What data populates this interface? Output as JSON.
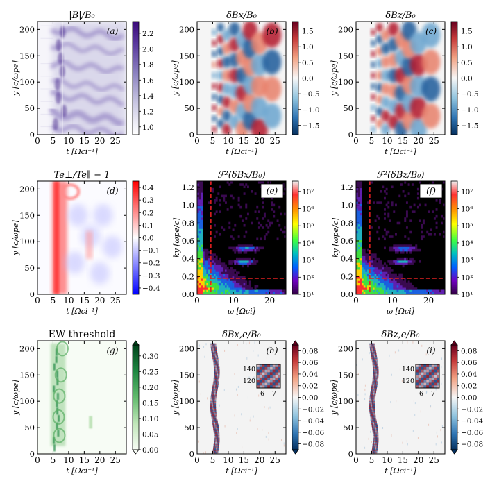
{
  "figure": {
    "panels": [
      {
        "id": "a",
        "title": "|B|/B₀",
        "label": "(a)",
        "type": "heatmap",
        "xlabel": "t [Ωci⁻¹]",
        "ylabel": "y [c/ωpe]",
        "x_ticks": [
          0,
          5,
          10,
          15,
          20,
          25
        ],
        "y_ticks": [
          0,
          50,
          100,
          150,
          200
        ],
        "xlim": [
          0,
          28.5
        ],
        "ylim": [
          0,
          215
        ],
        "colormap": "purples",
        "cbar_ticks": [
          "2.2",
          "2.0",
          "1.8",
          "1.6",
          "1.4",
          "1.2",
          "1.0"
        ],
        "cbar_range": [
          0.9,
          2.35
        ]
      },
      {
        "id": "b",
        "title": "δBx/B₀",
        "label": "(b)",
        "type": "heatmap",
        "xlabel": "t [Ωci⁻¹]",
        "ylabel": "y [c/ωpe]",
        "x_ticks": [
          0,
          5,
          10,
          15,
          20,
          25
        ],
        "y_ticks": [
          0,
          50,
          100,
          150,
          200
        ],
        "xlim": [
          0,
          28.5
        ],
        "ylim": [
          0,
          215
        ],
        "colormap": "rdbu",
        "cbar_ticks": [
          "1.5",
          "1.0",
          "0.5",
          "0.0",
          "−0.5",
          "−1.0",
          "−1.5"
        ],
        "cbar_range": [
          -1.8,
          1.8
        ]
      },
      {
        "id": "c",
        "title": "δBz/B₀",
        "label": "(c)",
        "type": "heatmap",
        "xlabel": "t [Ωci⁻¹]",
        "ylabel": "y [c/ωpe]",
        "x_ticks": [
          0,
          5,
          10,
          15,
          20,
          25
        ],
        "y_ticks": [
          0,
          50,
          100,
          150,
          200
        ],
        "xlim": [
          0,
          28.5
        ],
        "ylim": [
          0,
          215
        ],
        "colormap": "rdbu",
        "cbar_ticks": [
          "1.5",
          "1.0",
          "0.5",
          "0.0",
          "−0.5",
          "−1.0",
          "−1.5"
        ],
        "cbar_range": [
          -1.8,
          1.8
        ]
      },
      {
        "id": "d",
        "title": "Te⊥/Te∥ − 1",
        "label": "(d)",
        "type": "heatmap",
        "xlabel": "t [Ωci⁻¹]",
        "ylabel": "y [c/ωpe]",
        "x_ticks": [
          0,
          5,
          10,
          15,
          20,
          25
        ],
        "y_ticks": [
          0,
          50,
          100,
          150,
          200
        ],
        "xlim": [
          0,
          28.5
        ],
        "ylim": [
          0,
          215
        ],
        "colormap": "bwr",
        "cbar_ticks": [
          "0.4",
          "0.3",
          "0.2",
          "0.1",
          "0.0",
          "−0.1",
          "−0.2",
          "−0.3",
          "−0.4"
        ],
        "cbar_range": [
          -0.45,
          0.45
        ]
      },
      {
        "id": "e",
        "title": "ℱ²(δBx/B₀)",
        "label": "(e)",
        "type": "spectrum",
        "xlabel": "ω [Ωci]",
        "ylabel": "ky [ωpe/c]",
        "x_ticks": [
          0,
          10,
          20
        ],
        "y_ticks": [
          0.0,
          0.2,
          0.4,
          0.6,
          0.8,
          1.0,
          1.2
        ],
        "xlim": [
          0,
          24.5
        ],
        "ylim": [
          0,
          1.27
        ],
        "colormap": "spectral",
        "cbar_ticks": [
          "10⁷",
          "10⁶",
          "10⁵",
          "10⁴",
          "10³",
          "10²",
          "10¹"
        ],
        "cbar_range": [
          1,
          7.6
        ],
        "threshold_omega": 3.8,
        "threshold_ky": 0.18
      },
      {
        "id": "f",
        "title": "ℱ²(δBz/B₀)",
        "label": "(f)",
        "type": "spectrum",
        "xlabel": "ω [Ωci]",
        "ylabel": "ky [ωpe/c]",
        "x_ticks": [
          0,
          10,
          20
        ],
        "y_ticks": [
          0.0,
          0.2,
          0.4,
          0.6,
          0.8,
          1.0,
          1.2
        ],
        "xlim": [
          0,
          24.5
        ],
        "ylim": [
          0,
          1.27
        ],
        "colormap": "spectral",
        "cbar_ticks": [
          "10⁷",
          "10⁶",
          "10⁵",
          "10⁴",
          "10³",
          "10²",
          "10¹"
        ],
        "cbar_range": [
          1,
          7.6
        ],
        "threshold_omega": 3.8,
        "threshold_ky": 0.18
      },
      {
        "id": "g",
        "title": "EW threshold",
        "label": "(g)",
        "type": "heatmap",
        "xlabel": "t [Ωci⁻¹]",
        "ylabel": "y [c/ωpe]",
        "x_ticks": [
          0,
          5,
          10,
          15,
          20,
          25
        ],
        "y_ticks": [
          0,
          50,
          100,
          150,
          200
        ],
        "xlim": [
          0,
          28.5
        ],
        "ylim": [
          0,
          215
        ],
        "colormap": "greens",
        "cbar_ticks": [
          "0.30",
          "0.25",
          "0.20",
          "0.15",
          "0.10",
          "0.05",
          "0.00"
        ],
        "cbar_range": [
          0,
          0.335
        ]
      },
      {
        "id": "h",
        "title": "δBx,e/B₀",
        "label": "(h)",
        "type": "heatmap",
        "xlabel": "t [Ωci⁻¹]",
        "ylabel": "y [c/ωpe]",
        "x_ticks": [
          0,
          5,
          10,
          15,
          20,
          25
        ],
        "y_ticks": [
          0,
          50,
          100,
          150,
          200
        ],
        "xlim": [
          0,
          28.5
        ],
        "ylim": [
          0,
          215
        ],
        "colormap": "rdbu",
        "cbar_ticks": [
          "0.08",
          "0.06",
          "0.04",
          "0.02",
          "0.00",
          "−0.02",
          "−0.04",
          "−0.06",
          "−0.08"
        ],
        "cbar_range": [
          -0.09,
          0.09
        ],
        "inset": {
          "x_ticks": [
            "6",
            "7"
          ],
          "y_ticks": [
            "140",
            "120"
          ]
        }
      },
      {
        "id": "i",
        "title": "δBz,e/B₀",
        "label": "(i)",
        "type": "heatmap",
        "xlabel": "t [Ωci⁻¹]",
        "ylabel": "y [c/ωpe]",
        "x_ticks": [
          0,
          5,
          10,
          15,
          20,
          25
        ],
        "y_ticks": [
          0,
          50,
          100,
          150,
          200
        ],
        "xlim": [
          0,
          28.5
        ],
        "ylim": [
          0,
          215
        ],
        "colormap": "rdbu",
        "cbar_ticks": [
          "0.08",
          "0.06",
          "0.04",
          "0.02",
          "0.00",
          "−0.02",
          "−0.04",
          "−0.06",
          "−0.08"
        ],
        "cbar_range": [
          -0.09,
          0.09
        ],
        "inset": {
          "x_ticks": [
            "6",
            "7"
          ],
          "y_ticks": [
            "140",
            "120"
          ]
        }
      }
    ]
  },
  "chart_data": [
    {
      "type": "heatmap",
      "panel": "a",
      "title": "|B|/B₀",
      "x_range": [
        0,
        28.5
      ],
      "y_range": [
        0,
        215
      ],
      "value_range": [
        0.9,
        2.35
      ],
      "note": "Compressed field bands begin near t=5; strongest around y=40 and y=200."
    },
    {
      "type": "heatmap",
      "panel": "b",
      "title": "δBx/B₀",
      "x_range": [
        0,
        28.5
      ],
      "y_range": [
        0,
        215
      ],
      "value_range": [
        -1.8,
        1.8
      ],
      "note": "Alternating red/blue blobs starting near t=5, growing in size with time."
    },
    {
      "type": "heatmap",
      "panel": "c",
      "title": "δBz/B₀",
      "x_range": [
        0,
        28.5
      ],
      "y_range": [
        0,
        215
      ],
      "value_range": [
        -1.8,
        1.8
      ],
      "note": "Alternating red/blue blobs starting near t=5."
    },
    {
      "type": "heatmap",
      "panel": "d",
      "title": "Te⊥/Te∥ − 1",
      "x_range": [
        0,
        28.5
      ],
      "y_range": [
        0,
        215
      ],
      "value_range": [
        -0.45,
        0.45
      ],
      "note": "Strong positive anisotropy band around t=5-9; weakly negative afterward."
    },
    {
      "type": "heatmap",
      "panel": "e",
      "title": "ℱ²(δBx/B₀)",
      "x_range": [
        0,
        24.5
      ],
      "y_range": [
        0,
        1.27
      ],
      "log_value_range": [
        1,
        7.6
      ],
      "thresholds": {
        "omega": 3.8,
        "ky": 0.18
      },
      "note": "Power concentrated at low ω and ky; features near ky≈0.35 and 0.5 at ω≈10-17."
    },
    {
      "type": "heatmap",
      "panel": "f",
      "title": "ℱ²(δBz/B₀)",
      "x_range": [
        0,
        24.5
      ],
      "y_range": [
        0,
        1.27
      ],
      "log_value_range": [
        1,
        7.6
      ],
      "thresholds": {
        "omega": 3.8,
        "ky": 0.18
      }
    },
    {
      "type": "heatmap",
      "panel": "g",
      "title": "EW threshold",
      "x_range": [
        0,
        28.5
      ],
      "y_range": [
        0,
        215
      ],
      "value_range": [
        0,
        0.335
      ],
      "note": "Green band concentrated at t≈4-9, weak patch near t≈17, y≈60."
    },
    {
      "type": "heatmap",
      "panel": "h",
      "title": "δBx,e/B₀",
      "x_range": [
        0,
        28.5
      ],
      "y_range": [
        0,
        215
      ],
      "value_range": [
        -0.09,
        0.09
      ],
      "inset_x": [
        5.5,
        7.6
      ],
      "inset_y": [
        110,
        150
      ]
    },
    {
      "type": "heatmap",
      "panel": "i",
      "title": "δBz,e/B₀",
      "x_range": [
        0,
        28.5
      ],
      "y_range": [
        0,
        215
      ],
      "value_range": [
        -0.09,
        0.09
      ],
      "inset_x": [
        5.5,
        7.6
      ],
      "inset_y": [
        110,
        150
      ]
    }
  ]
}
